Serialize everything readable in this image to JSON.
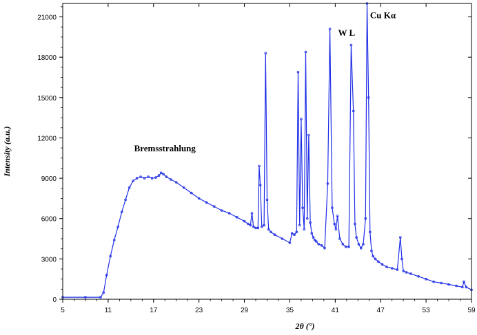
{
  "chart_data": {
    "type": "line",
    "title": "",
    "xlabel": "2θ (°)",
    "ylabel": "Intensity (a.u.)",
    "xlim": [
      5,
      59
    ],
    "ylim": [
      0,
      22000
    ],
    "xticks": [
      5,
      11,
      17,
      23,
      29,
      35,
      41,
      47,
      53,
      59
    ],
    "yticks": [
      0,
      3000,
      6000,
      9000,
      12000,
      15000,
      18000,
      21000
    ],
    "grid": false,
    "legend": "none",
    "series_color": "#1f2ee6",
    "annotations": [
      {
        "text": "Bremsstrahlung",
        "x": 18.5,
        "y": 11000
      },
      {
        "text": "W L",
        "x": 42.5,
        "y": 19600
      },
      {
        "text": "Cu Kα",
        "x": 47.3,
        "y": 20900
      }
    ],
    "series": [
      {
        "x": [
          5,
          8,
          10,
          10.4,
          10.8,
          11.3,
          11.8,
          12.3,
          12.8,
          13.3,
          13.8,
          14.3,
          14.8,
          15.3,
          15.8,
          16.3,
          16.8,
          17.3,
          17.7,
          18.0,
          18.3,
          18.7,
          19.3,
          20,
          21,
          22,
          23,
          24,
          25,
          26,
          27,
          28,
          29,
          29.5,
          29.8,
          30.0,
          30.2,
          30.5,
          30.8,
          30.95,
          31.1,
          31.3,
          31.6,
          31.8,
          32.0,
          32.2,
          32.5,
          33,
          34,
          35,
          35.3,
          35.6,
          35.9,
          36.1,
          36.3,
          36.5,
          36.7,
          36.9,
          37.1,
          37.3,
          37.5,
          37.7,
          37.9,
          38.1,
          38.3,
          38.5,
          38.8,
          39.2,
          39.6,
          40.0,
          40.3,
          40.6,
          40.9,
          41.1,
          41.3,
          41.6,
          42,
          42.4,
          42.8,
          43.1,
          43.4,
          43.6,
          43.8,
          44.1,
          44.4,
          44.7,
          45.0,
          45.2,
          45.4,
          45.6,
          45.8,
          46.0,
          46.3,
          46.7,
          47.2,
          47.8,
          48.5,
          49.2,
          49.6,
          49.8,
          50.0,
          50.4,
          51,
          52,
          53,
          54,
          55,
          56,
          57,
          57.8,
          58,
          58.3,
          59
        ],
        "y": [
          150,
          150,
          150,
          500,
          1800,
          3200,
          4400,
          5400,
          6500,
          7400,
          8300,
          8800,
          9000,
          9100,
          9000,
          9100,
          9000,
          9050,
          9200,
          9400,
          9300,
          9100,
          8900,
          8700,
          8300,
          7900,
          7500,
          7200,
          6900,
          6600,
          6400,
          6100,
          5800,
          5600,
          5500,
          6400,
          5400,
          5300,
          5300,
          9900,
          8500,
          5400,
          5500,
          18300,
          7400,
          5200,
          5000,
          4800,
          4500,
          4200,
          4900,
          4800,
          5000,
          16900,
          5500,
          13400,
          6800,
          5200,
          18400,
          6000,
          12200,
          5700,
          4900,
          4600,
          4400,
          4300,
          4100,
          4000,
          3800,
          8600,
          20100,
          6800,
          5600,
          5200,
          6200,
          4500,
          4100,
          3900,
          3900,
          18900,
          14000,
          5600,
          4600,
          4100,
          3800,
          4100,
          6000,
          22000,
          15000,
          5000,
          3600,
          3200,
          3000,
          2800,
          2600,
          2400,
          2300,
          2200,
          4600,
          3000,
          2100,
          2000,
          1900,
          1700,
          1500,
          1300,
          1200,
          1100,
          1000,
          900,
          1300,
          900,
          700
        ]
      }
    ]
  }
}
